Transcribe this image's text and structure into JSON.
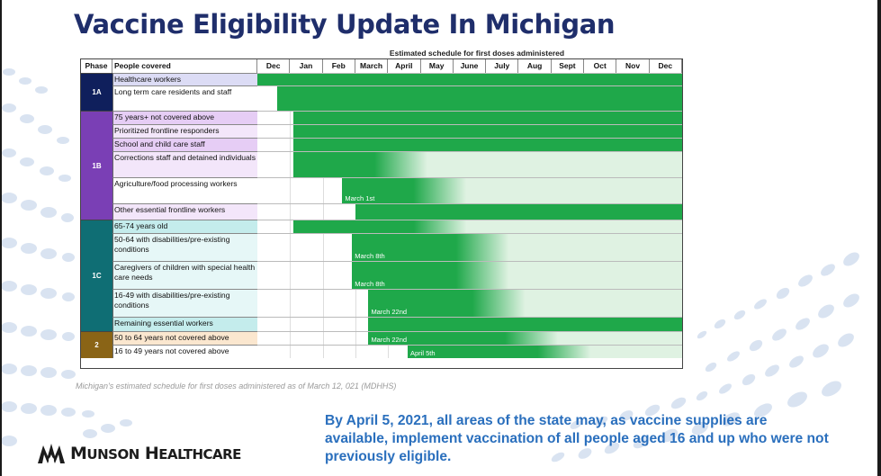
{
  "slide": {
    "title": "Vaccine Eligibility Update In Michigan",
    "schedule_header": "Estimated schedule for first doses administered",
    "caption": "Michigan's estimated schedule for first doses administered as of March 12, 021 (MDHHS)",
    "footer_text": "By April 5, 2021, all areas of the state may, as vaccine supplies are available, implement vaccination of all people aged 16 and up who were not previously eligible.",
    "logo_text": "Munson Healthcare"
  },
  "table": {
    "phase_header": "Phase",
    "people_header": "People covered",
    "months": [
      "Dec",
      "Jan",
      "Feb",
      "March",
      "April",
      "May",
      "June",
      "July",
      "Aug",
      "Sept",
      "Oct",
      "Nov",
      "Dec"
    ],
    "phases": [
      {
        "label": "1A",
        "color": "#0f1f5c",
        "text_color": "#ffffff"
      },
      {
        "label": "1B",
        "color": "#7a3fb5",
        "text_color": "#ffffff"
      },
      {
        "label": "1C",
        "color": "#0f6e74",
        "text_color": "#ffffff"
      },
      {
        "label": "2",
        "color": "#8a6416",
        "text_color": "#ffffff"
      }
    ],
    "rows": [
      {
        "phase": "1A",
        "text": "Healthcare workers",
        "bg": "#dcdcf5",
        "start_month": 0,
        "fade_month": null,
        "start_label": ""
      },
      {
        "phase": "1A",
        "text": "Long term care residents and staff",
        "bg": "#ffffff",
        "start_month": 0.6,
        "fade_month": null,
        "start_label": ""
      },
      {
        "phase": "1B",
        "text": "75 years+ not covered above",
        "bg": "#e6cdf5",
        "start_month": 1.1,
        "fade_month": null,
        "start_label": ""
      },
      {
        "phase": "1B",
        "text": "Prioritized frontline responders",
        "bg": "#f3e6fa",
        "start_month": 1.1,
        "fade_month": null,
        "start_label": ""
      },
      {
        "phase": "1B",
        "text": "School and child care staff",
        "bg": "#e6cdf5",
        "start_month": 1.1,
        "fade_month": null,
        "start_label": ""
      },
      {
        "phase": "1B",
        "text": "Corrections staff and detained individuals",
        "bg": "#f3e6fa",
        "start_month": 1.1,
        "fade_month": 4.0,
        "start_label": ""
      },
      {
        "phase": "1B",
        "text": "Agriculture/food processing workers",
        "bg": "#ffffff",
        "start_month": 2.6,
        "fade_month": 5.2,
        "start_label": "March 1st"
      },
      {
        "phase": "1B",
        "text": "Other essential frontline workers",
        "bg": "#f3e6fa",
        "start_month": 3.0,
        "fade_month": null,
        "start_label": ""
      },
      {
        "phase": "1C",
        "text": "65-74 years old",
        "bg": "#c4ecec",
        "start_month": 1.1,
        "fade_month": 5.2,
        "start_label": ""
      },
      {
        "phase": "1C",
        "text": "50-64 with disabilities/pre-existing conditions",
        "bg": "#e6f7f7",
        "start_month": 2.9,
        "fade_month": 6.5,
        "start_label": "March 8th"
      },
      {
        "phase": "1C",
        "text": "Caregivers of children with special health care needs",
        "bg": "#e6f7f7",
        "start_month": 2.9,
        "fade_month": 6.5,
        "start_label": "March 8th"
      },
      {
        "phase": "1C",
        "text": "16-49 with disabilities/pre-existing conditions",
        "bg": "#e6f7f7",
        "start_month": 3.4,
        "fade_month": 7.0,
        "start_label": "March 22nd"
      },
      {
        "phase": "1C",
        "text": "Remaining essential workers",
        "bg": "#c4ecec",
        "start_month": 3.4,
        "fade_month": null,
        "start_label": ""
      },
      {
        "phase": "2",
        "text": "50 to 64 years not covered above",
        "bg": "#fbe7cf",
        "start_month": 3.4,
        "fade_month": 8.0,
        "start_label": "March 22nd"
      },
      {
        "phase": "2",
        "text": "16 to 49 years not covered above",
        "bg": "#ffffff",
        "start_month": 4.6,
        "fade_month": 9.0,
        "start_label": "April 5th"
      }
    ]
  },
  "colors": {
    "title": "#1f2e6b",
    "bar_green": "#1fa84a",
    "bar_fade": "#dff2e2",
    "footer_blue": "#2a6fbd"
  }
}
